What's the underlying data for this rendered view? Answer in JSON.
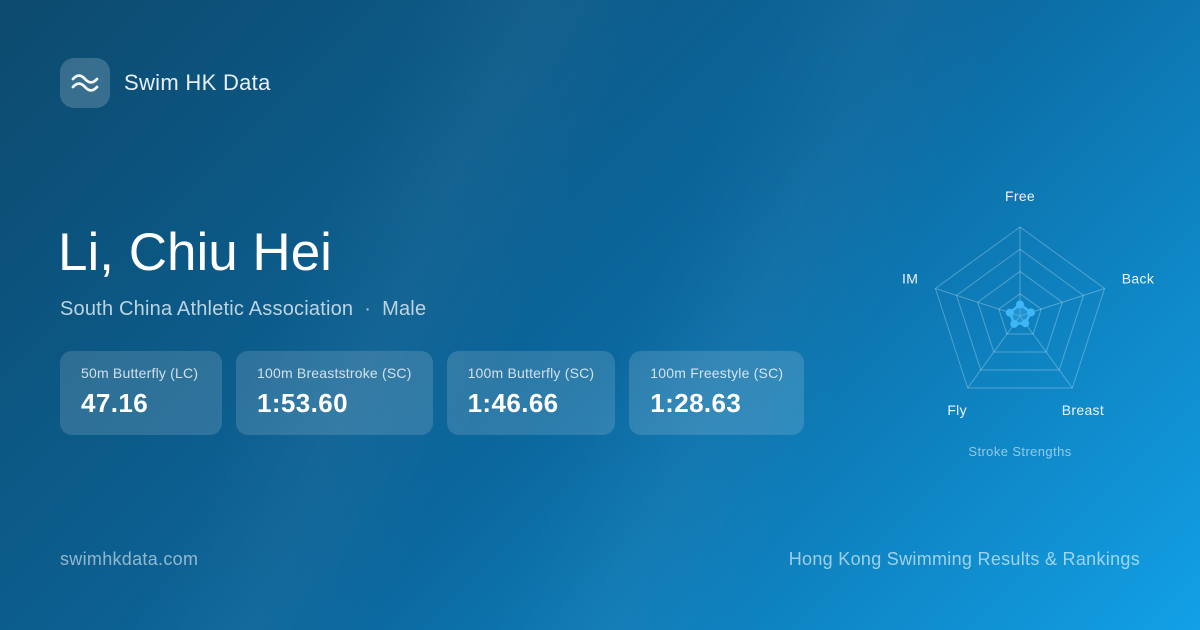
{
  "brand": {
    "name": "Swim HK Data",
    "logo_icon": "waves-icon"
  },
  "athlete": {
    "name": "Li, Chiu Hei",
    "club": "South China Athletic Association",
    "separator": "·",
    "gender": "Male"
  },
  "stat_cards": [
    {
      "label": "50m Butterfly (LC)",
      "value": "47.16"
    },
    {
      "label": "100m Breaststroke (SC)",
      "value": "1:53.60"
    },
    {
      "label": "100m Butterfly (SC)",
      "value": "1:46.66"
    },
    {
      "label": "100m Freestyle (SC)",
      "value": "1:28.63"
    }
  ],
  "chart_data": {
    "type": "radar",
    "title": "Stroke Strengths",
    "caption": "Stroke Strengths",
    "axes": [
      "Free",
      "Back",
      "Breast",
      "Fly",
      "IM"
    ],
    "values": [
      13,
      13,
      10,
      11,
      12
    ],
    "scale_max": 100,
    "rings": 4,
    "grid_on": true,
    "series_color": "#3fb6f5",
    "series_fill": "rgba(63,182,245,0.38)",
    "grid_color": "rgba(255,255,255,0.28)",
    "label_color": "rgba(255,255,255,0.92)"
  },
  "footer": {
    "left": "swimhkdata.com",
    "right": "Hong Kong Swimming Results & Rankings"
  },
  "theme": {
    "bg_gradient_start": "#0d4a6e",
    "bg_gradient_mid": "#0b679d",
    "bg_gradient_end": "#12a0e6",
    "card_bg": "rgba(255,255,255,0.14)",
    "text_primary": "#ffffff",
    "text_secondary": "#bdd4e1",
    "text_muted": "rgba(255,255,255,0.55)"
  }
}
